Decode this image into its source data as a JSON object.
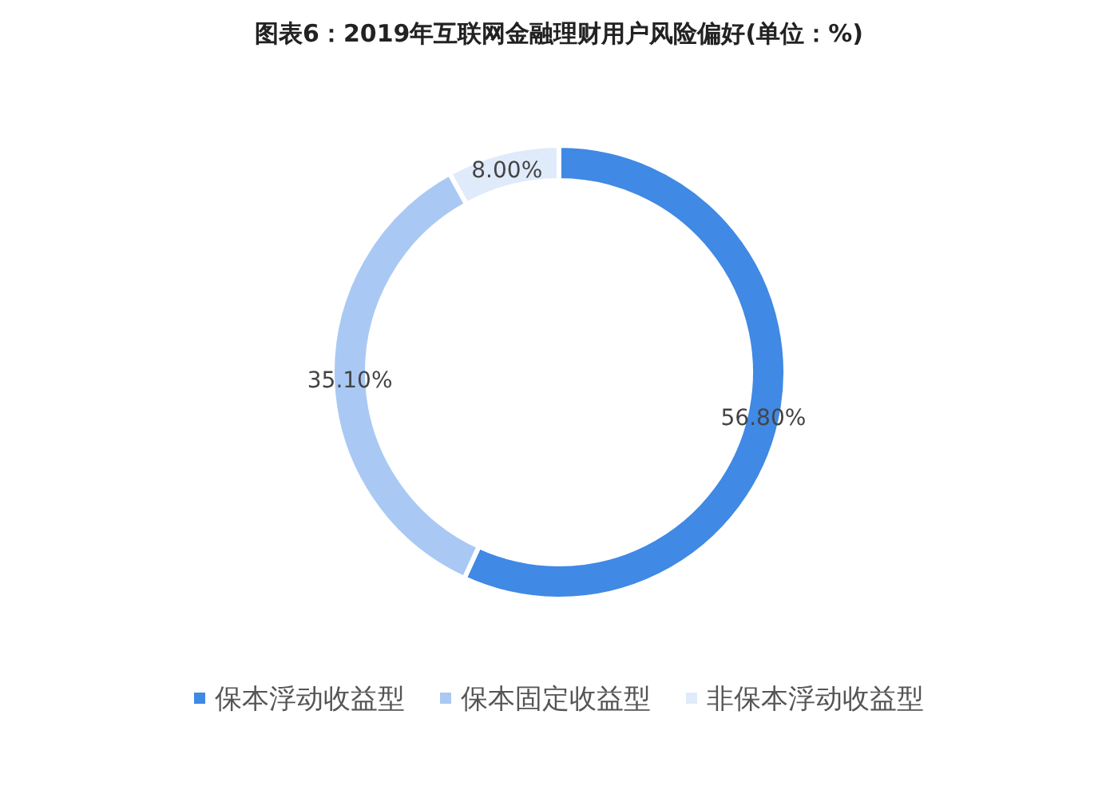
{
  "chart_data": {
    "type": "donut",
    "title": "图表6：2019年互联网金融理财用户风险偏好(单位：%)",
    "categories": [
      "保本浮动收益型",
      "保本固定收益型",
      "非保本浮动收益型"
    ],
    "values": [
      56.8,
      35.1,
      8.0
    ],
    "value_labels": [
      "56.80%",
      "35.10%",
      "8.00%"
    ],
    "colors": [
      "#4089e4",
      "#a9c9f4",
      "#dfebfa"
    ],
    "legend": "bottom"
  }
}
